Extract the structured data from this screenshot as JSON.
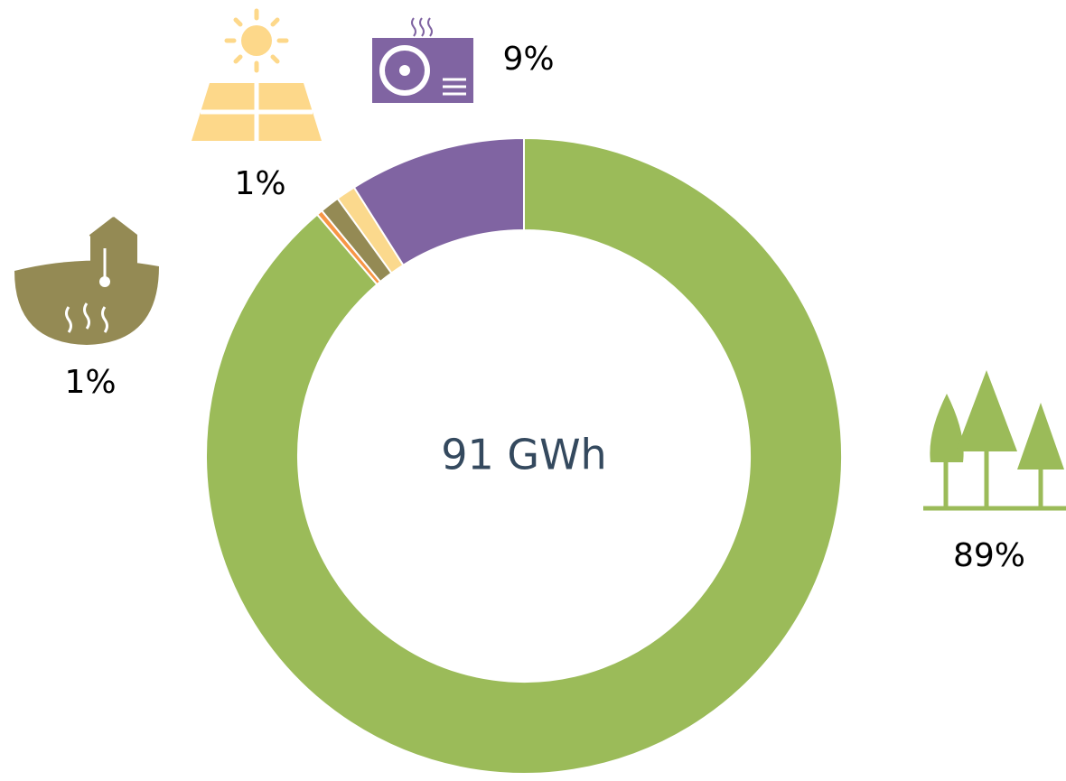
{
  "chart_data": {
    "type": "donut",
    "center_label": "91 GWh",
    "values": [
      89,
      0.3,
      1,
      1,
      9
    ],
    "value_labels": [
      "89%",
      null,
      "1%",
      "1%",
      "9%"
    ],
    "colors": [
      "#9bbb59",
      "#f79646",
      "#948a54",
      "#fbd98d",
      "#8064a2"
    ]
  }
}
